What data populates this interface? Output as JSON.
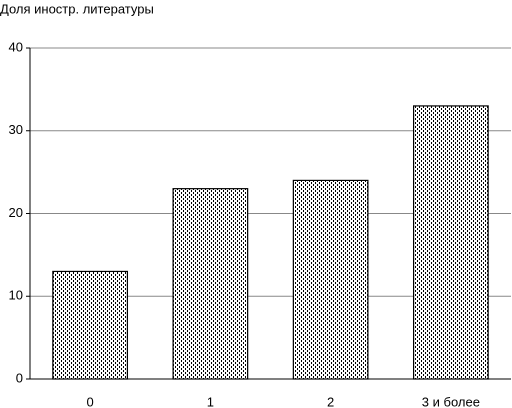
{
  "chart_data": {
    "type": "bar",
    "y_label": "Доля иностр. литературы",
    "categories": [
      "0",
      "1",
      "2",
      "3 и более"
    ],
    "values": [
      13,
      23,
      24,
      33
    ],
    "color": "#000000",
    "fill_pattern": "dots",
    "ylim": [
      0,
      40
    ],
    "yticks": [
      0,
      10,
      20,
      30,
      40
    ],
    "grid": true
  }
}
